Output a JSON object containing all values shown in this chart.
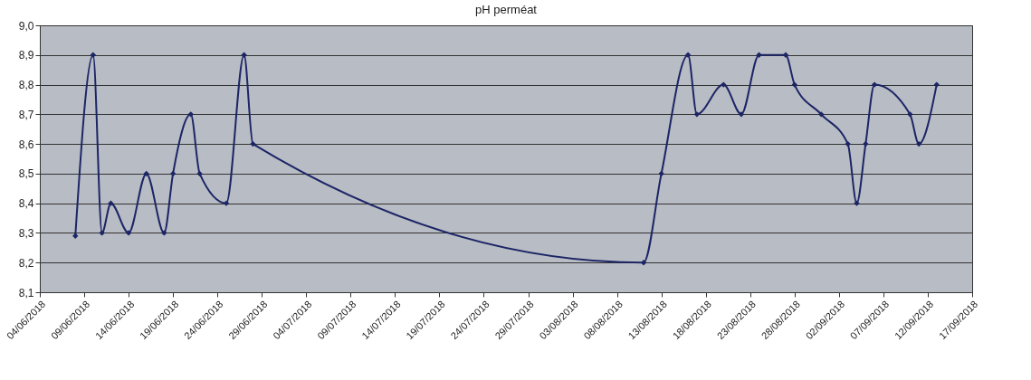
{
  "chart_data": {
    "type": "line",
    "title": "pH perméat",
    "x": [
      "2018-06-08",
      "2018-06-10",
      "2018-06-11",
      "2018-06-12",
      "2018-06-14",
      "2018-06-16",
      "2018-06-18",
      "2018-06-19",
      "2018-06-21",
      "2018-06-22",
      "2018-06-25",
      "2018-06-27",
      "2018-06-28",
      "2018-08-11",
      "2018-08-13",
      "2018-08-16",
      "2018-08-17",
      "2018-08-20",
      "2018-08-22",
      "2018-08-24",
      "2018-08-27",
      "2018-08-28",
      "2018-08-31",
      "2018-09-03",
      "2018-09-04",
      "2018-09-05",
      "2018-09-06",
      "2018-09-10",
      "2018-09-11",
      "2018-09-13"
    ],
    "series": [
      {
        "color": "#1c2566",
        "values": [
          8.29,
          8.9,
          8.3,
          8.4,
          8.3,
          8.5,
          8.3,
          8.5,
          8.7,
          8.5,
          8.4,
          8.9,
          8.6,
          8.2,
          8.5,
          8.9,
          8.7,
          8.8,
          8.7,
          8.9,
          8.9,
          8.8,
          8.7,
          8.6,
          8.4,
          8.6,
          8.8,
          8.7,
          8.6,
          8.8
        ]
      }
    ],
    "xlim": [
      "2018-06-04",
      "2018-09-17"
    ],
    "xticks": [
      {
        "value": "2018-06-04",
        "label": "04/06/2018"
      },
      {
        "value": "2018-06-09",
        "label": "09/06/2018"
      },
      {
        "value": "2018-06-14",
        "label": "14/06/2018"
      },
      {
        "value": "2018-06-19",
        "label": "19/06/2018"
      },
      {
        "value": "2018-06-24",
        "label": "24/06/2018"
      },
      {
        "value": "2018-06-29",
        "label": "29/06/2018"
      },
      {
        "value": "2018-07-04",
        "label": "04/07/2018"
      },
      {
        "value": "2018-07-09",
        "label": "09/07/2018"
      },
      {
        "value": "2018-07-14",
        "label": "14/07/2018"
      },
      {
        "value": "2018-07-19",
        "label": "19/07/2018"
      },
      {
        "value": "2018-07-24",
        "label": "24/07/2018"
      },
      {
        "value": "2018-07-29",
        "label": "29/07/2018"
      },
      {
        "value": "2018-08-03",
        "label": "03/08/2018"
      },
      {
        "value": "2018-08-08",
        "label": "08/08/2018"
      },
      {
        "value": "2018-08-13",
        "label": "13/08/2018"
      },
      {
        "value": "2018-08-18",
        "label": "18/08/2018"
      },
      {
        "value": "2018-08-23",
        "label": "23/08/2018"
      },
      {
        "value": "2018-08-28",
        "label": "28/08/2018"
      },
      {
        "value": "2018-09-02",
        "label": "02/09/2018"
      },
      {
        "value": "2018-09-07",
        "label": "07/09/2018"
      },
      {
        "value": "2018-09-12",
        "label": "12/09/2018"
      },
      {
        "value": "2018-09-17",
        "label": "17/09/2018"
      }
    ],
    "ylim": [
      8.1,
      9.0
    ],
    "yticks": [
      {
        "value": 8.1,
        "label": "8,1"
      },
      {
        "value": 8.2,
        "label": "8,2"
      },
      {
        "value": 8.3,
        "label": "8,3"
      },
      {
        "value": 8.4,
        "label": "8,4"
      },
      {
        "value": 8.5,
        "label": "8,5"
      },
      {
        "value": 8.6,
        "label": "8,6"
      },
      {
        "value": 8.7,
        "label": "8,7"
      },
      {
        "value": 8.8,
        "label": "8,8"
      },
      {
        "value": 8.9,
        "label": "8,9"
      },
      {
        "value": 9.0,
        "label": "9,0"
      }
    ],
    "grid": "y",
    "marker": "diamond",
    "line_style": "solid"
  }
}
